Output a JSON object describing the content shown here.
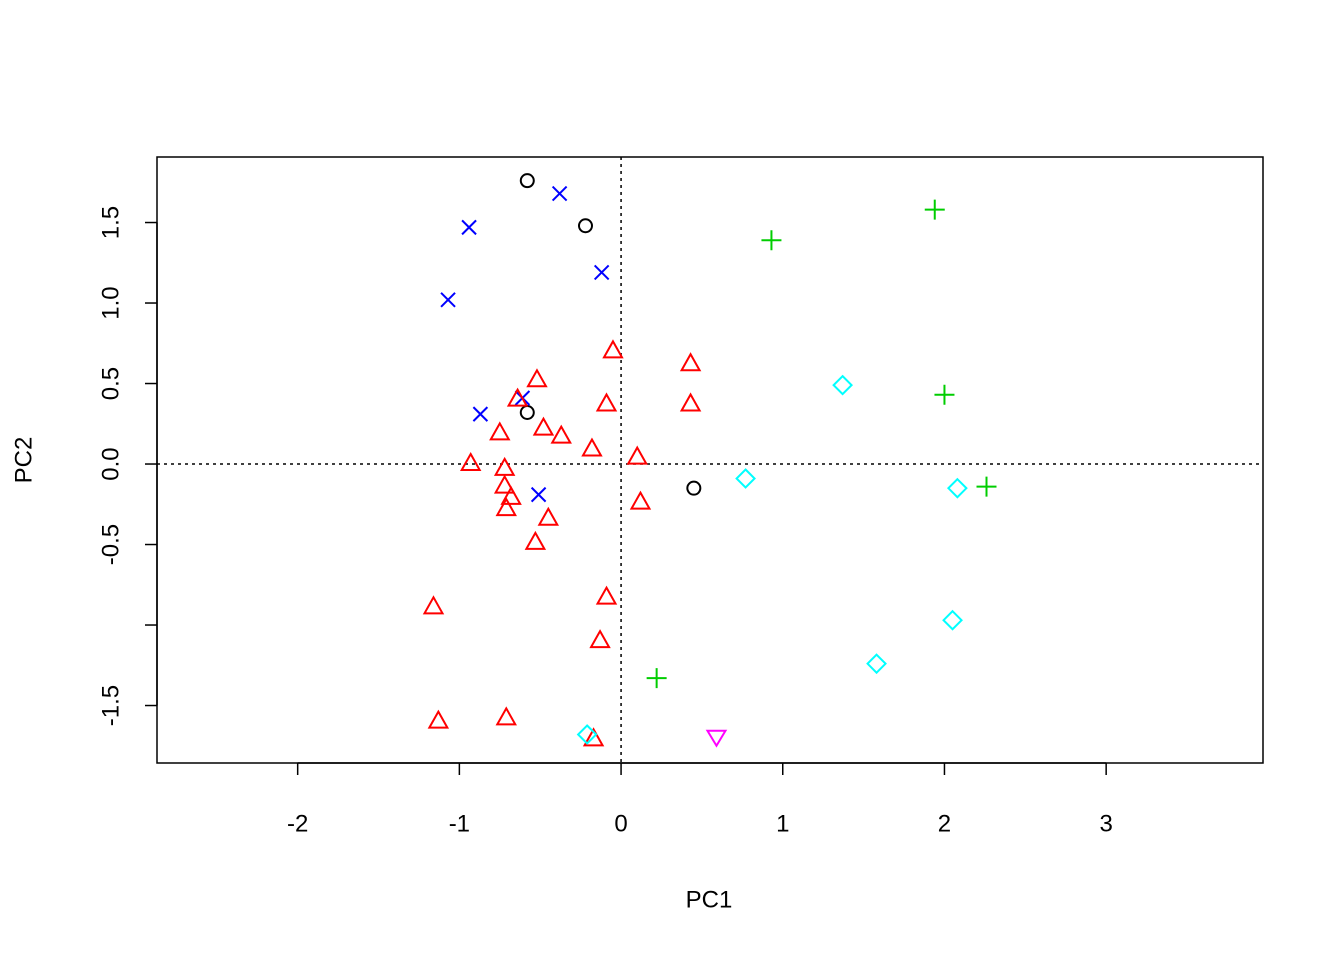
{
  "chart_data": {
    "type": "scatter",
    "x_label": "PC1",
    "y_label": "PC2",
    "xlim": [
      -2.87,
      3.97
    ],
    "ylim": [
      -1.857,
      1.907
    ],
    "xticks": [
      -2,
      -1,
      0,
      1,
      2,
      3
    ],
    "yticks": [
      {
        "value": -1.5,
        "label": "-1.5"
      },
      {
        "value": -1,
        "label": null
      },
      {
        "value": -0.5,
        "label": "-0.5"
      },
      {
        "value": 0,
        "label": "0.0"
      },
      {
        "value": 0.5,
        "label": "0.5"
      },
      {
        "value": 1,
        "label": "1.0"
      },
      {
        "value": 1.5,
        "label": "1.5"
      }
    ],
    "hline": 0,
    "vline": 0,
    "series": [
      {
        "color": "#000000",
        "marker": "circle",
        "x": [
          -0.58,
          -0.22,
          -0.58,
          0.45
        ],
        "values": [
          1.76,
          1.48,
          0.32,
          -0.15
        ]
      },
      {
        "color": "#0000ff",
        "marker": "x",
        "x": [
          -0.38,
          -0.94,
          -0.12,
          -1.07,
          -0.87,
          -0.61,
          -0.51
        ],
        "values": [
          1.68,
          1.47,
          1.19,
          1.02,
          0.31,
          0.41,
          -0.19
        ]
      },
      {
        "color": "#ff0000",
        "marker": "triangle",
        "x": [
          -0.05,
          0.43,
          -0.52,
          -0.64,
          -0.09,
          0.43,
          -0.75,
          -0.48,
          -0.37,
          -0.18,
          -0.93,
          0.1,
          -0.72,
          -0.72,
          -0.68,
          -0.71,
          -0.45,
          0.12,
          -0.53,
          -0.09,
          -1.16,
          -0.13,
          -1.13,
          -0.71,
          -0.17
        ],
        "values": [
          0.7,
          0.62,
          0.52,
          0.4,
          0.37,
          0.37,
          0.19,
          0.22,
          0.17,
          0.09,
          0.0,
          0.04,
          -0.03,
          -0.14,
          -0.21,
          -0.28,
          -0.34,
          -0.24,
          -0.49,
          -0.83,
          -0.89,
          -1.1,
          -1.6,
          -1.58,
          -1.71
        ]
      },
      {
        "color": "#00cd00",
        "marker": "plus",
        "x": [
          1.94,
          0.93,
          2.0,
          2.26,
          0.22
        ],
        "values": [
          1.58,
          1.39,
          0.43,
          -0.14,
          -1.33
        ]
      },
      {
        "color": "#00ffff",
        "marker": "diamond",
        "x": [
          1.37,
          0.77,
          2.08,
          2.05,
          1.58,
          -0.21
        ],
        "values": [
          0.49,
          -0.09,
          -0.15,
          -0.97,
          -1.24,
          -1.68
        ]
      },
      {
        "color": "#ff00ff",
        "marker": "triangle-down",
        "x": [
          0.59
        ],
        "values": [
          -1.7
        ]
      }
    ]
  }
}
